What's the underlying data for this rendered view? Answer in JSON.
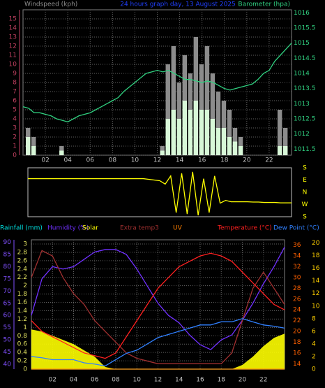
{
  "chart_data": [
    {
      "type": "bar",
      "title": "24 hours graph day, 13 August 2025",
      "ylabel": "Windspeed (kph)",
      "y2label": "Barometer (hpa)",
      "x": [
        0,
        0.5,
        1,
        1.5,
        2,
        2.5,
        3,
        3.5,
        4,
        4.5,
        5,
        5.5,
        6,
        6.5,
        7,
        7.5,
        8,
        8.5,
        9,
        9.5,
        10,
        10.5,
        11,
        11.5,
        12,
        12.5,
        13,
        13.5,
        14,
        14.5,
        15,
        15.5,
        16,
        16.5,
        17,
        17.5,
        18,
        18.5,
        19,
        19.5,
        20,
        20.5,
        21,
        21.5,
        22,
        22.5,
        23,
        23.5,
        24
      ],
      "xlim": [
        0,
        24
      ],
      "xticks": [
        {
          "value": 2,
          "label": "02"
        },
        {
          "value": 4,
          "label": "04"
        },
        {
          "value": 6,
          "label": "06"
        },
        {
          "value": 8,
          "label": "08"
        },
        {
          "value": 10,
          "label": "10"
        },
        {
          "value": 12,
          "label": "12"
        },
        {
          "value": 14,
          "label": "14"
        },
        {
          "value": 16,
          "label": "16"
        },
        {
          "value": 18,
          "label": "18"
        },
        {
          "value": 20,
          "label": "20"
        },
        {
          "value": 22,
          "label": "22"
        }
      ],
      "ylim": [
        0,
        16
      ],
      "yticks": [
        0,
        1,
        2,
        3,
        4,
        5,
        6,
        7,
        8,
        9,
        10,
        11,
        12,
        13,
        14,
        15
      ],
      "y2lim": [
        1011.3,
        1016.1
      ],
      "y2ticks": [
        1011.5,
        1012,
        1012.5,
        1013,
        1013.5,
        1014,
        1014.5,
        1015,
        1015.5,
        1016
      ],
      "grid": true,
      "series": [
        {
          "color": "#8c8c8c",
          "values": [
            0,
            3,
            2,
            0,
            0,
            0,
            0,
            1,
            0,
            0,
            0,
            0,
            0,
            0,
            0,
            0,
            0,
            0,
            0,
            0,
            0,
            0,
            0,
            0,
            0,
            1,
            10,
            12,
            8,
            11,
            9,
            13,
            10,
            12,
            9,
            7,
            6,
            5,
            3,
            2,
            0,
            0,
            0,
            0,
            0,
            0,
            5,
            3,
            0
          ]
        },
        {
          "color": "#d8f8d8",
          "values": [
            0,
            2,
            1,
            0,
            0,
            0,
            0,
            0.5,
            0,
            0,
            0,
            0,
            0,
            0,
            0,
            0,
            0,
            0,
            0,
            0,
            0,
            0,
            0,
            0,
            0,
            0.5,
            4,
            5,
            4,
            6,
            5,
            6,
            5,
            5,
            4,
            3,
            3,
            2,
            1.5,
            1,
            0,
            0,
            0,
            0,
            0,
            0,
            1,
            1,
            0
          ]
        },
        {
          "color": "#30d080",
          "axis": "y2",
          "values": [
            1012.9,
            1012.85,
            1012.7,
            1012.7,
            1012.65,
            1012.6,
            1012.5,
            1012.45,
            1012.4,
            1012.5,
            1012.6,
            1012.65,
            1012.7,
            1012.8,
            1012.9,
            1013.0,
            1013.1,
            1013.2,
            1013.4,
            1013.55,
            1013.7,
            1013.85,
            1014.0,
            1014.05,
            1014.1,
            1014.05,
            1014.1,
            1014.0,
            1013.9,
            1013.8,
            1013.8,
            1013.75,
            1013.7,
            1013.75,
            1013.7,
            1013.6,
            1013.5,
            1013.45,
            1013.5,
            1013.55,
            1013.6,
            1013.65,
            1013.8,
            1014.0,
            1014.1,
            1014.4,
            1014.6,
            1014.8,
            1015.0
          ]
        }
      ]
    },
    {
      "type": "line",
      "x": [
        0,
        0.5,
        1,
        1.5,
        2,
        2.5,
        3,
        3.5,
        4,
        4.5,
        5,
        5.5,
        6,
        6.5,
        7,
        7.5,
        8,
        8.5,
        9,
        9.5,
        10,
        10.5,
        11,
        11.5,
        12,
        12.5,
        13,
        13.5,
        14,
        14.5,
        15,
        15.5,
        16,
        16.5,
        17,
        17.5,
        18,
        18.5,
        19,
        19.5,
        20,
        20.5,
        21,
        21.5,
        22,
        22.5,
        23,
        23.5,
        24
      ],
      "xlim": [
        0,
        24
      ],
      "ylim": [
        -180,
        180
      ],
      "yticks": [
        {
          "value": 180,
          "label": "S"
        },
        {
          "value": 90,
          "label": "E"
        },
        {
          "value": 0,
          "label": "N"
        },
        {
          "value": -90,
          "label": "W"
        },
        {
          "value": -180,
          "label": "S"
        }
      ],
      "series": [
        {
          "color": "#ffff00",
          "values": [
            100,
            100,
            100,
            100,
            100,
            100,
            100,
            100,
            100,
            100,
            100,
            100,
            100,
            100,
            100,
            100,
            100,
            100,
            100,
            100,
            100,
            100,
            95,
            90,
            85,
            60,
            120,
            -150,
            140,
            -160,
            150,
            -170,
            100,
            -150,
            120,
            -80,
            -60,
            -70,
            -70,
            -70,
            -70,
            -72,
            -72,
            -75,
            -75,
            -75,
            -78,
            -78,
            -78
          ]
        }
      ]
    },
    {
      "type": "line",
      "x": [
        0,
        1,
        2,
        3,
        4,
        5,
        6,
        7,
        8,
        9,
        10,
        11,
        12,
        13,
        14,
        15,
        16,
        17,
        18,
        19,
        20,
        21,
        22,
        23,
        24
      ],
      "xlim": [
        0,
        24
      ],
      "xticks": [
        {
          "value": 2,
          "label": "02"
        },
        {
          "value": 4,
          "label": "04"
        },
        {
          "value": 6,
          "label": "06"
        },
        {
          "value": 8,
          "label": "08"
        },
        {
          "value": 10,
          "label": "10"
        },
        {
          "value": 12,
          "label": "12"
        },
        {
          "value": 14,
          "label": "14"
        },
        {
          "value": 16,
          "label": "16"
        },
        {
          "value": 18,
          "label": "18"
        },
        {
          "value": 20,
          "label": "20"
        },
        {
          "value": 22,
          "label": "22"
        }
      ],
      "ylim": [
        0,
        3.1
      ],
      "yticks": [
        0,
        0.2,
        0.4,
        0.6,
        0.8,
        1,
        1.2,
        1.4,
        1.6,
        1.8,
        2,
        2.2,
        2.4,
        2.6,
        2.8,
        3
      ],
      "y2lim": [
        38,
        91
      ],
      "y2ticks": [
        40,
        45,
        50,
        55,
        60,
        65,
        70,
        75,
        80,
        85,
        90
      ],
      "y3lim": [
        13,
        37
      ],
      "y3ticks": [
        14,
        16,
        18,
        20,
        22,
        24,
        26,
        28,
        30,
        32,
        34,
        36
      ],
      "y4lim": [
        0,
        20.5
      ],
      "y4ticks": [
        0,
        2,
        4,
        6,
        8,
        10,
        12,
        14,
        16,
        18,
        20
      ],
      "grid": true,
      "series": [
        {
          "name": "Rainfall (mm)",
          "color": "#00e0e0",
          "values": [
            0,
            0,
            0,
            0,
            0,
            0,
            0,
            0,
            0,
            0,
            0,
            0,
            0,
            0,
            0,
            0,
            0,
            0,
            0,
            0,
            0,
            0,
            0,
            0,
            0
          ]
        },
        {
          "name": "Humidity (%)",
          "color": "#7030ff",
          "axis": "y2",
          "values": [
            60,
            75,
            80,
            79,
            80,
            83,
            86,
            87,
            87,
            85,
            79,
            72,
            65,
            60,
            57,
            52,
            48,
            46,
            50,
            52,
            58,
            65,
            73,
            80,
            88
          ]
        },
        {
          "name": "Solar",
          "color": "#ffff00",
          "area": true,
          "values": [
            0.95,
            0.9,
            0.8,
            0.7,
            0.6,
            0.45,
            0.3,
            0.05,
            0,
            0,
            0,
            0,
            0,
            0,
            0,
            0,
            0,
            0,
            0,
            0,
            0.1,
            0.3,
            0.55,
            0.75,
            0.85
          ]
        },
        {
          "name": "Extra temp3",
          "color": "#a03030",
          "axis": "y3",
          "values": [
            30,
            35,
            34,
            30,
            27,
            25,
            22,
            20,
            18,
            16,
            15,
            14.5,
            14,
            14,
            14,
            14,
            14,
            14,
            14,
            16,
            22,
            28,
            31,
            28,
            25
          ]
        },
        {
          "name": "UV",
          "color": "#ff8000",
          "values": [
            0,
            0,
            0,
            0,
            0,
            0,
            0,
            0,
            0,
            0,
            0,
            0,
            0,
            0,
            0,
            0,
            0,
            0,
            0,
            0,
            0,
            0,
            0,
            0,
            0
          ]
        },
        {
          "name": "Temperature (°C)",
          "color": "#ff2020",
          "axis": "y3",
          "values": [
            22,
            20,
            19,
            18,
            17,
            16,
            15.5,
            15,
            16,
            19,
            22,
            25,
            28,
            30,
            32,
            33,
            34,
            34.5,
            34,
            33,
            31,
            29,
            27,
            25,
            24
          ]
        },
        {
          "name": "Dew Point (°C)",
          "color": "#3080ff",
          "axis": "y4",
          "values": [
            2,
            1.8,
            1.5,
            1.5,
            1.5,
            1,
            0.8,
            0.5,
            1.5,
            2.5,
            3,
            4,
            5,
            5.5,
            6,
            6.5,
            7,
            7,
            7.5,
            7.5,
            8,
            7.5,
            7,
            6.8,
            6.5
          ]
        }
      ]
    }
  ]
}
